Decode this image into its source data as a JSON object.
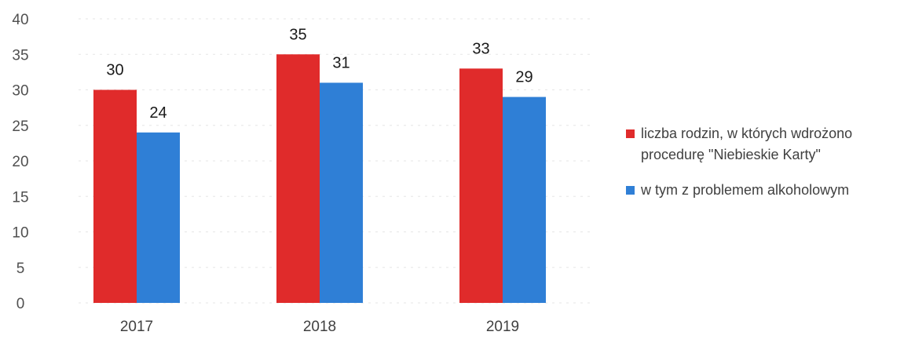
{
  "chart_data": {
    "type": "bar",
    "title": "",
    "xlabel": "",
    "ylabel": "",
    "categories": [
      "2017",
      "2018",
      "2019"
    ],
    "series": [
      {
        "name": "liczba rodzin, w których wdrożono procedurę \"Niebieskie Karty\"",
        "legend_lines": [
          "liczba rodzin, w których wdrożono",
          "procedurę \"Niebieskie Karty\""
        ],
        "color": "#e02b2b",
        "values": [
          30,
          35,
          33
        ]
      },
      {
        "name": "w tym z problemem alkoholowym",
        "legend_lines": [
          "w tym z problemem alkoholowym"
        ],
        "color": "#2f7fd6",
        "values": [
          24,
          31,
          29
        ]
      }
    ],
    "ylim": [
      0,
      40
    ],
    "yticks": [
      0,
      5,
      10,
      15,
      20,
      25,
      30,
      35,
      40
    ],
    "grid": true,
    "legend_position": "right",
    "data_labels": true
  }
}
